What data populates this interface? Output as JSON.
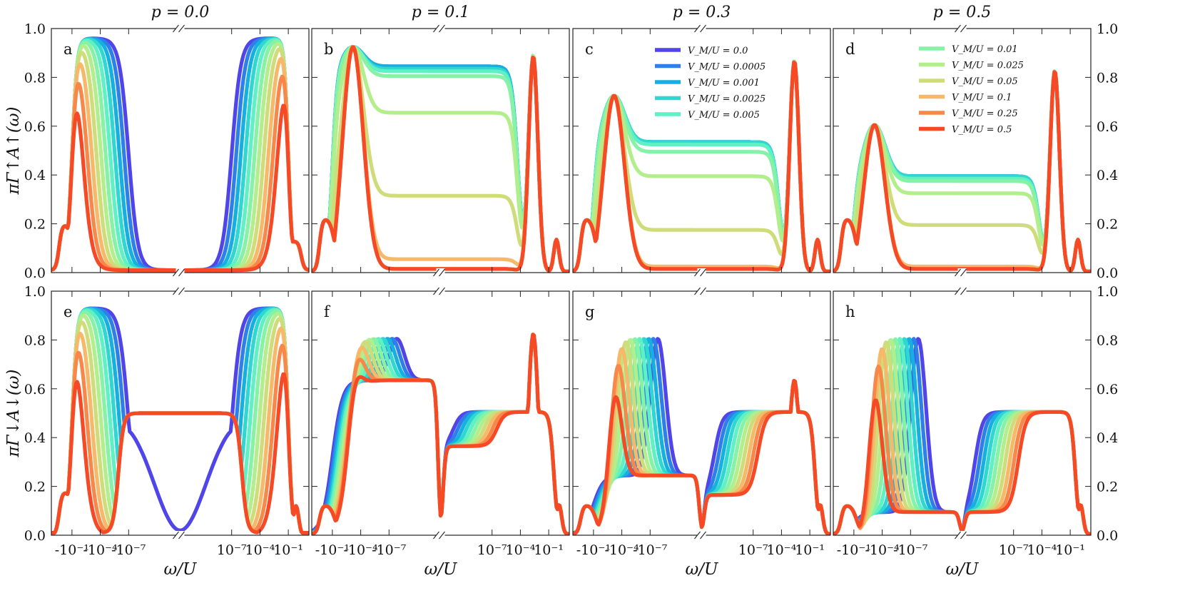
{
  "chart_data": {
    "type": "line",
    "figure": "Spectral functions for spin up and spin down vs frequency, for several spin polarizations p and Majorana couplings V_M/U",
    "xlabel": "ω/U",
    "ylabels": {
      "up": "πΓ↑A↑(ω)",
      "down": "πΓ↓A↓(ω)"
    },
    "ylim": [
      0,
      1
    ],
    "yticks": [
      "0.0",
      "0.2",
      "0.4",
      "0.6",
      "0.8",
      "1.0"
    ],
    "xtick_labels": [
      "-10⁻¹",
      "-10⁻⁴",
      "-10⁻⁷",
      "10⁻⁷",
      "10⁻⁴",
      "10⁻¹"
    ],
    "columns": [
      "p = 0.0",
      "p = 0.1",
      "p = 0.3",
      "p = 0.5"
    ],
    "panel_letters": [
      "a",
      "b",
      "c",
      "d",
      "e",
      "f",
      "g",
      "h"
    ],
    "series": [
      {
        "name": "V_M/U = 0.0",
        "vm": 0.0,
        "color": "#4f45e8"
      },
      {
        "name": "V_M/U = 0.0005",
        "vm": 0.0005,
        "color": "#2f7fe8"
      },
      {
        "name": "V_M/U = 0.001",
        "vm": 0.001,
        "color": "#16b0e0"
      },
      {
        "name": "V_M/U = 0.0025",
        "vm": 0.0025,
        "color": "#30d6d0"
      },
      {
        "name": "V_M/U = 0.005",
        "vm": 0.005,
        "color": "#5ff0c4"
      },
      {
        "name": "V_M/U = 0.01",
        "vm": 0.01,
        "color": "#86f2a6"
      },
      {
        "name": "V_M/U = 0.025",
        "vm": 0.025,
        "color": "#b2ee8c"
      },
      {
        "name": "V_M/U = 0.05",
        "vm": 0.05,
        "color": "#cfdc7a"
      },
      {
        "name": "V_M/U = 0.1",
        "vm": 0.1,
        "color": "#f6b96a"
      },
      {
        "name": "V_M/U = 0.25",
        "vm": 0.25,
        "color": "#f8874a"
      },
      {
        "name": "V_M/U = 0.5",
        "vm": 0.5,
        "color": "#f64a26"
      }
    ],
    "legend_groups": [
      {
        "panel": "c",
        "entries": [
          "V_M/U = 0.0",
          "V_M/U = 0.0005",
          "V_M/U = 0.001",
          "V_M/U = 0.0025",
          "V_M/U = 0.005"
        ]
      },
      {
        "panel": "d",
        "entries": [
          "V_M/U = 0.01",
          "V_M/U = 0.025",
          "V_M/U = 0.05",
          "V_M/U = 0.1",
          "V_M/U = 0.25",
          "V_M/U = 0.5"
        ]
      }
    ],
    "plateau_values": {
      "up": {
        "p0.0": [
          0.01
        ],
        "p0.1": [
          0.84,
          0.84,
          0.84,
          0.83,
          0.82,
          0.8,
          0.65,
          0.31,
          0.05,
          0.01,
          0.01
        ],
        "p0.3": [
          0.53,
          0.53,
          0.53,
          0.53,
          0.52,
          0.49,
          0.39,
          0.17,
          0.02,
          0.01,
          0.01
        ],
        "p0.5": [
          0.39,
          0.39,
          0.39,
          0.39,
          0.38,
          0.37,
          0.32,
          0.19,
          0.02,
          0.01,
          0.01
        ]
      },
      "down": {
        "p0.0": [
          0.5
        ],
        "p0.1": [
          0.63,
          0.5
        ],
        "p0.3": [
          0.24,
          0.5
        ],
        "p0.5": [
          0.09,
          0.5
        ]
      }
    }
  }
}
